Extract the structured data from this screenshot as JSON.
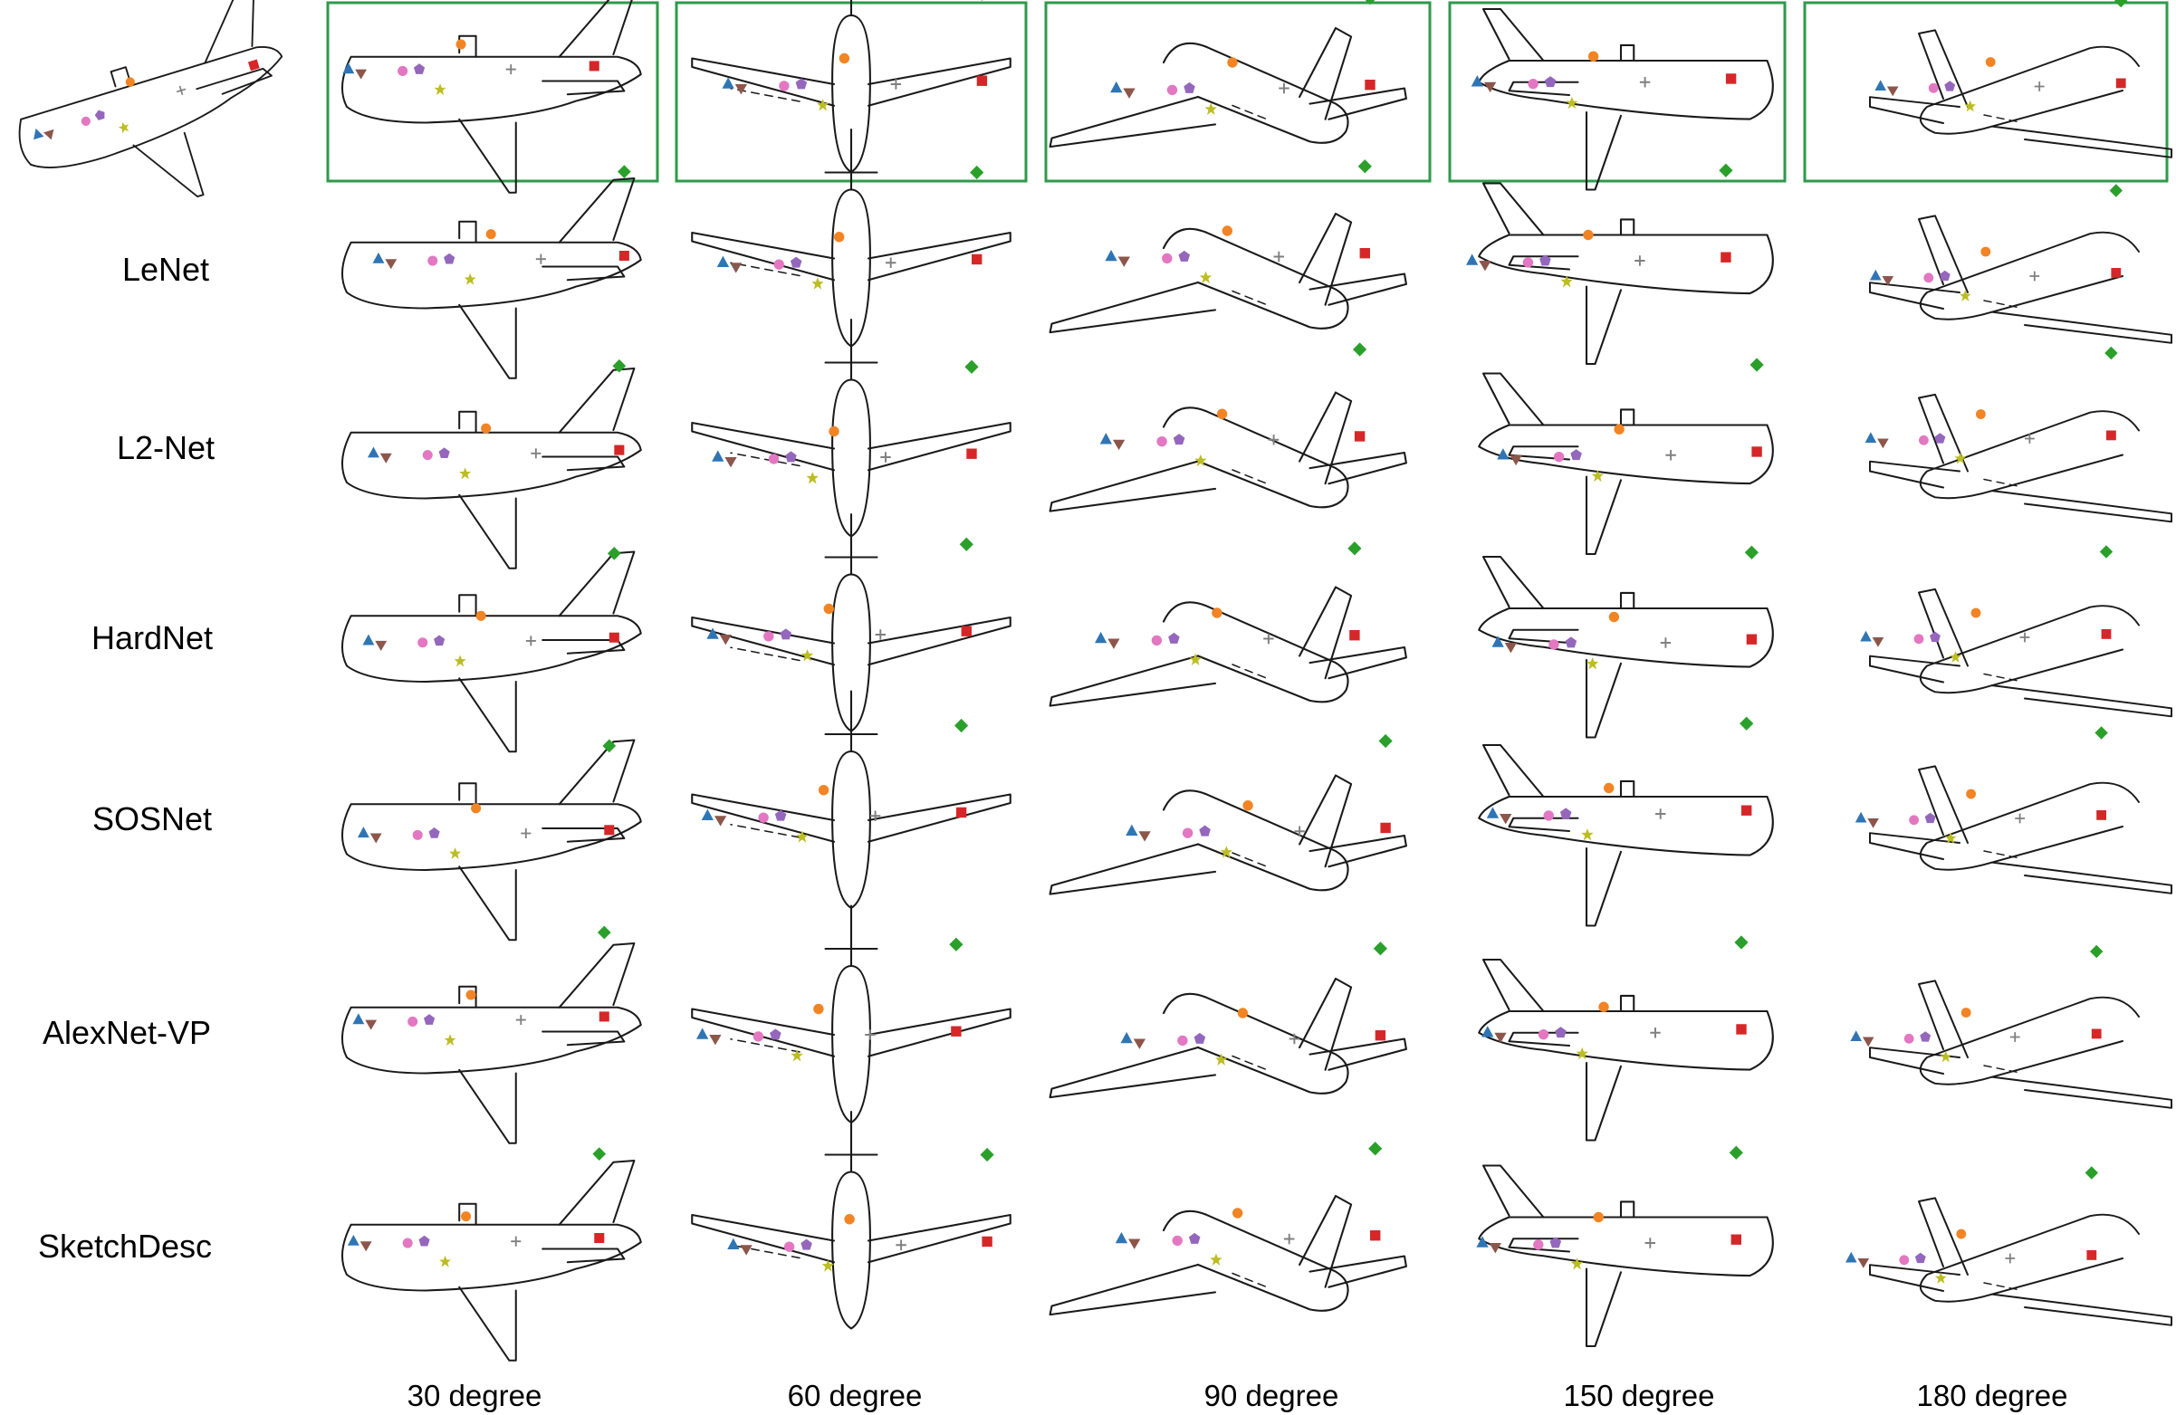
{
  "row_labels": [
    "LeNet",
    "L2-Net",
    "HardNet",
    "SOSNet",
    "AlexNet-VP",
    "SketchDesc"
  ],
  "column_labels": [
    "30 degree",
    "60 degree",
    "90 degree",
    "150 degree",
    "180 degree"
  ],
  "colors": {
    "frame": "#2e9a4a",
    "blue": "#2f75b5",
    "orange": "#f28424",
    "green": "#2aa02a",
    "red": "#d62728",
    "purple": "#9467bd",
    "brown": "#8c564b",
    "pink": "#e377c2",
    "gray": "#7f7f7f",
    "olive": "#bcbd22"
  },
  "marker_names": [
    "blue-triangle",
    "orange-circle",
    "green-diamond",
    "red-square",
    "purple-pentagon",
    "brown-inverted-triangle",
    "pink-circle",
    "gray-plus",
    "olive-star"
  ]
}
